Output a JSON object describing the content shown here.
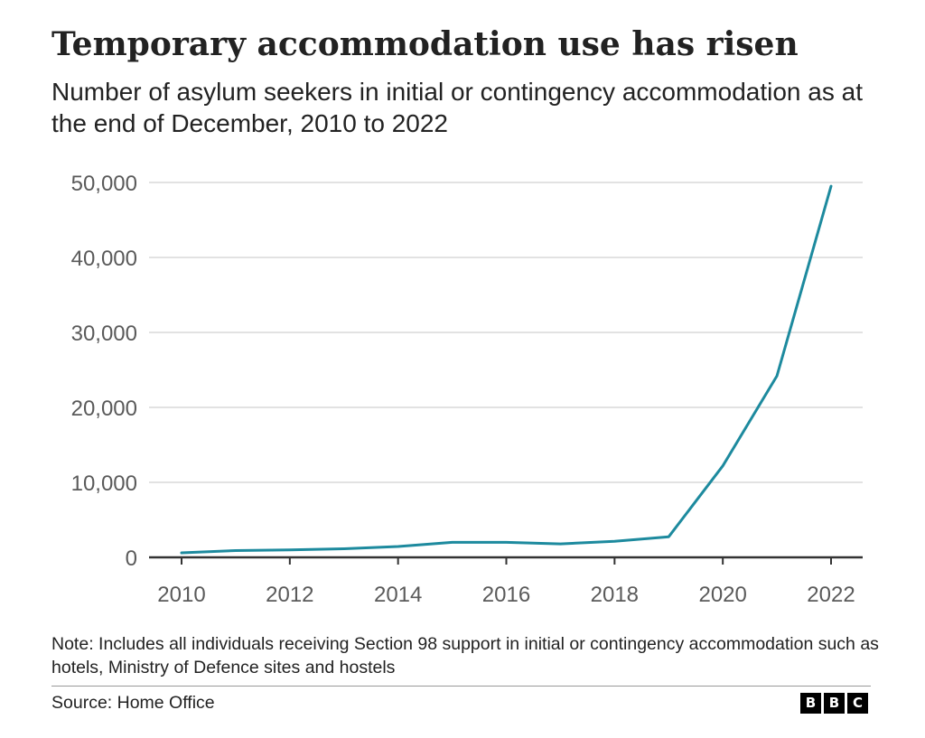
{
  "chart_data": {
    "type": "line",
    "title": "Temporary accommodation use has risen",
    "subtitle": "Number of asylum seekers in initial or contingency accommodation as at the end of December, 2010 to 2022",
    "x": [
      2010,
      2011,
      2012,
      2013,
      2014,
      2015,
      2016,
      2017,
      2018,
      2019,
      2020,
      2021,
      2022
    ],
    "series": [
      {
        "values": [
          600,
          900,
          1000,
          1150,
          1450,
          2000,
          2000,
          1800,
          2150,
          2750,
          12200,
          24200,
          49500
        ]
      }
    ],
    "xlim": [
      2010,
      2022
    ],
    "ylim": [
      0,
      50000
    ],
    "x_ticks": [
      2010,
      2012,
      2014,
      2016,
      2018,
      2020,
      2022
    ],
    "x_tick_labels": [
      "2010",
      "2012",
      "2014",
      "2016",
      "2018",
      "2020",
      "2022"
    ],
    "y_ticks": [
      0,
      10000,
      20000,
      30000,
      40000,
      50000
    ],
    "y_tick_labels": [
      "0",
      "10,000",
      "20,000",
      "30,000",
      "40,000",
      "50,000"
    ],
    "grid": true,
    "line_color": "#1d8a9e",
    "note": "Note: Includes all individuals receiving Section 98 support in initial or contingency accommodation such as hotels, Ministry of Defence sites and hostels",
    "source": "Source: Home Office"
  },
  "branding": {
    "logo_letters": [
      "B",
      "B",
      "C"
    ]
  }
}
